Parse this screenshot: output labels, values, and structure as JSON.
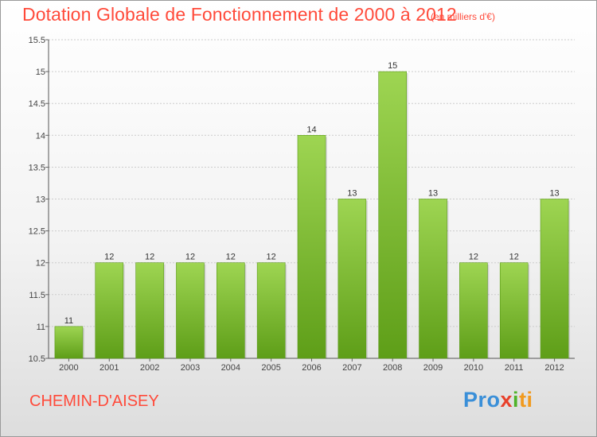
{
  "title": "Dotation Globale de Fonctionnement de 2000 à 2012",
  "unit_note": "(en milliers d'€)",
  "commune": "CHEMIN-D'AISEY",
  "logo": {
    "p1": "Pro",
    "p2": "x",
    "p3": "i",
    "p4": "ti"
  },
  "colors": {
    "title": "#ff4a3a",
    "bar": "#7dc233",
    "bar_light": "#9ed552",
    "bar_dark": "#5e9e18",
    "grid": "#cccccc"
  },
  "chart_data": {
    "type": "bar",
    "title": "Dotation Globale de Fonctionnement de 2000 à 2012",
    "categories": [
      "2000",
      "2001",
      "2002",
      "2003",
      "2004",
      "2005",
      "2006",
      "2007",
      "2008",
      "2009",
      "2010",
      "2011",
      "2012"
    ],
    "values": [
      11,
      12,
      12,
      12,
      12,
      12,
      14,
      13,
      15,
      13,
      12,
      12,
      13
    ],
    "plot_values": [
      11,
      12,
      12,
      12,
      12,
      12,
      14,
      13,
      15,
      13,
      12,
      12,
      13
    ],
    "value_labels": [
      "11",
      "12",
      "12",
      "12",
      "12",
      "12",
      "14",
      "13",
      "15",
      "13",
      "12",
      "12",
      "13"
    ],
    "yticks": [
      10.5,
      11,
      11.5,
      12,
      12.5,
      13,
      13.5,
      14,
      14.5,
      15,
      15.5
    ],
    "ytick_labels": [
      "10.5",
      "11",
      "11.5",
      "12",
      "12.5",
      "13",
      "13.5",
      "14",
      "14.5",
      "15",
      "15.5"
    ],
    "ylim": [
      10.5,
      15.5
    ],
    "xlabel": "",
    "ylabel": "",
    "grid": true
  }
}
